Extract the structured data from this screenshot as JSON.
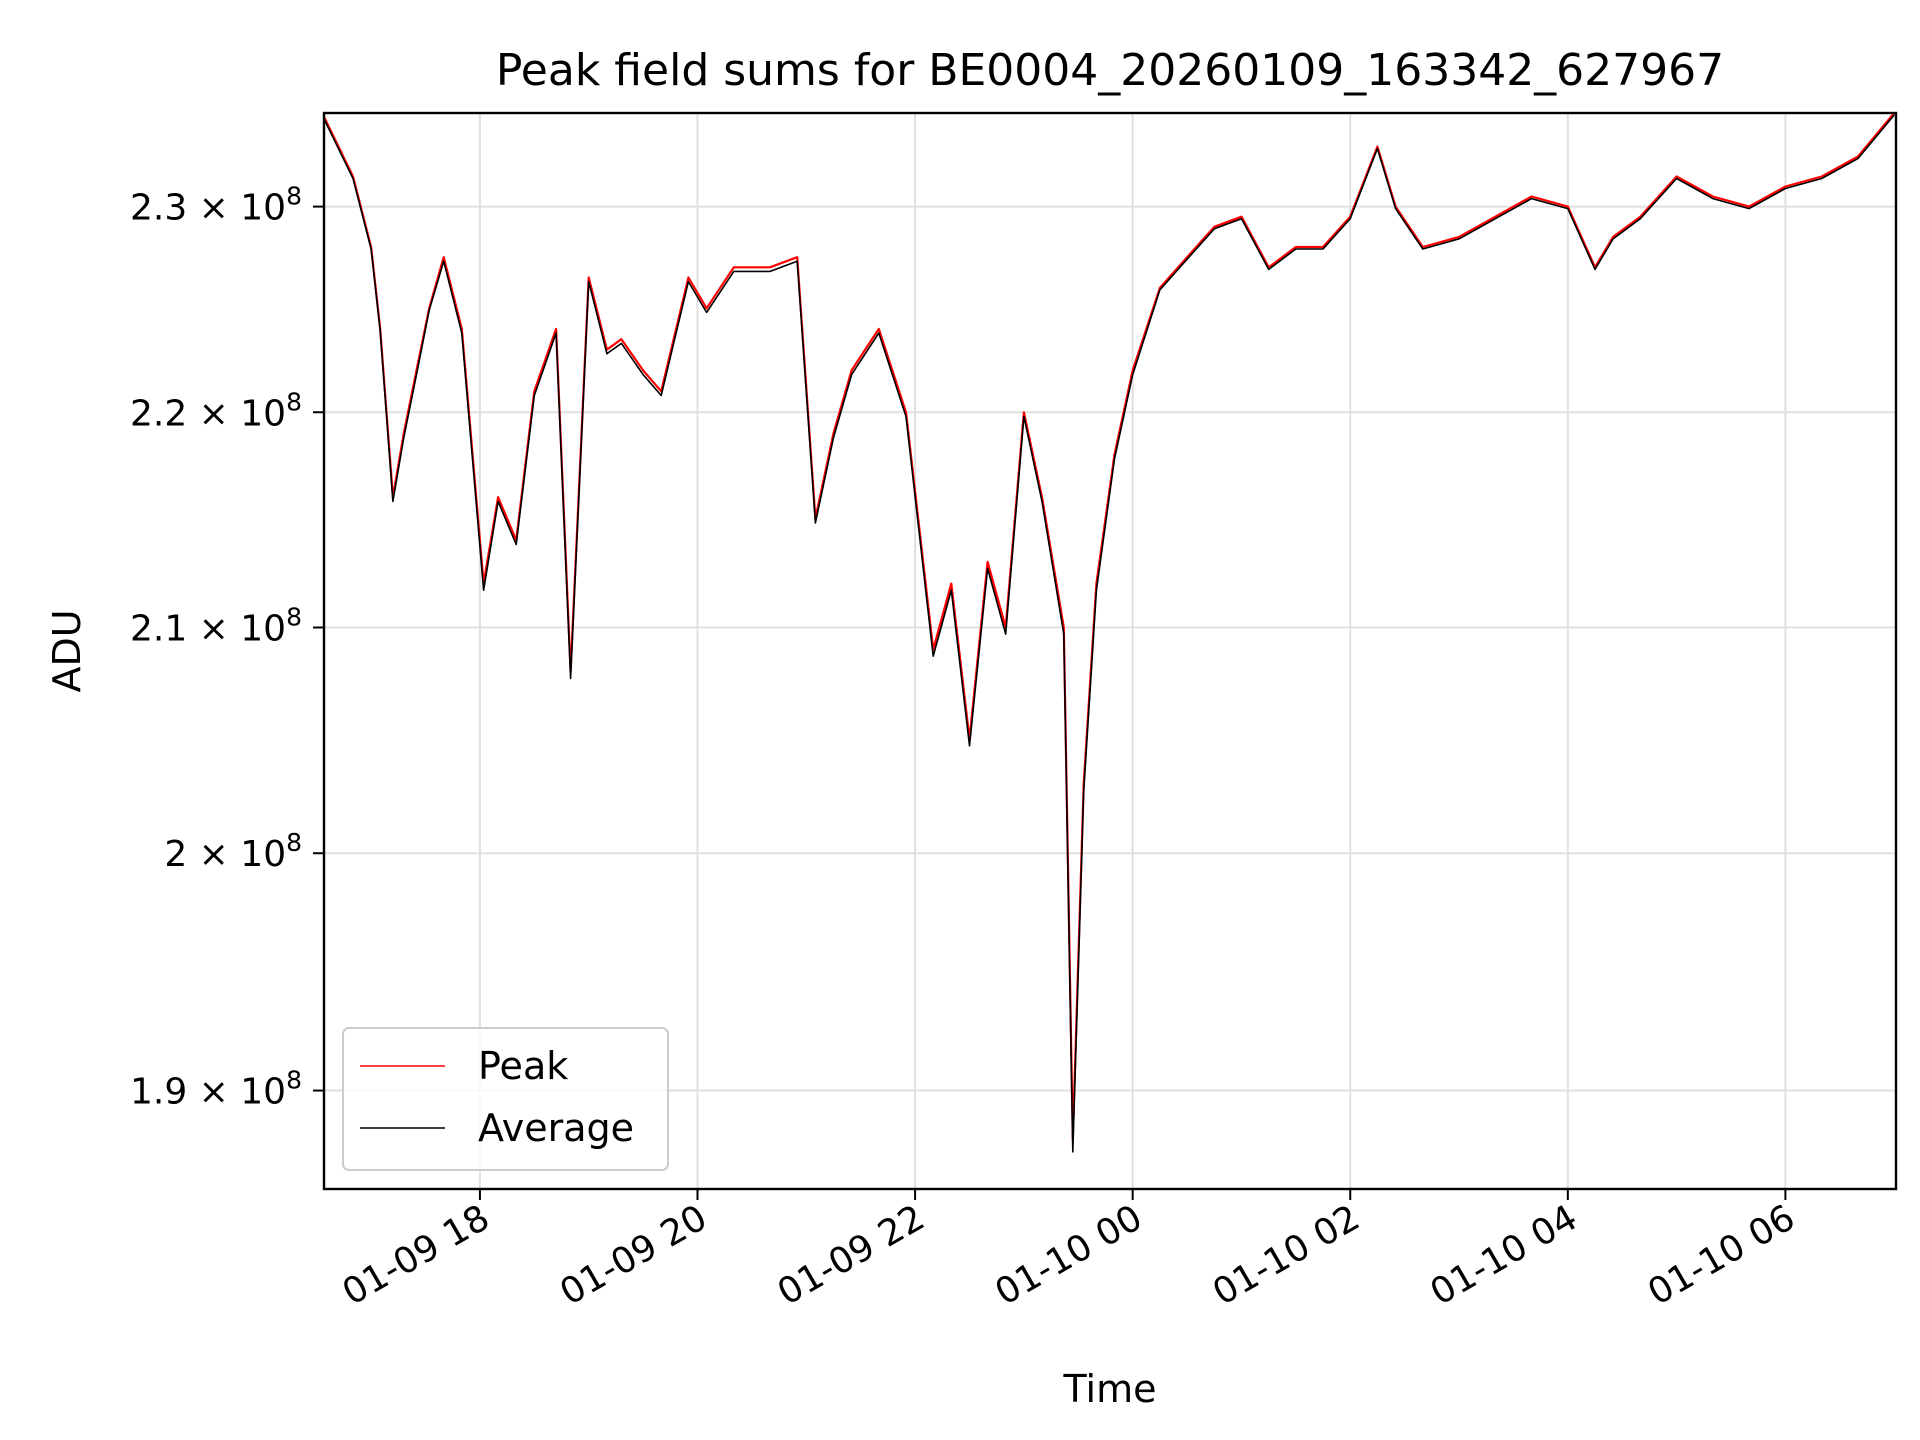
{
  "chart_data": {
    "type": "line",
    "title": "Peak field sums for BE0004_20260109_163342_627967",
    "xlabel": "Time",
    "ylabel": "ADU",
    "y_scale": "log",
    "xlim": [
      "2026-01-09 16:34",
      "2026-01-10 07:01"
    ],
    "ylim": [
      186000000,
      234700000
    ],
    "x_ticks": [
      "01-09 18",
      "01-09 20",
      "01-09 22",
      "01-10 00",
      "01-10 02",
      "01-10 04",
      "01-10 06"
    ],
    "x_tick_times": [
      "2026-01-09 18:00",
      "2026-01-09 20:00",
      "2026-01-09 22:00",
      "2026-01-10 00:00",
      "2026-01-10 02:00",
      "2026-01-10 04:00",
      "2026-01-10 06:00"
    ],
    "y_ticks": [
      {
        "value": 190000000,
        "mantissa": "1.9",
        "exponent": "8"
      },
      {
        "value": 200000000,
        "mantissa": "2",
        "exponent": "8"
      },
      {
        "value": 210000000,
        "mantissa": "2.1",
        "exponent": "8"
      },
      {
        "value": 220000000,
        "mantissa": "2.2",
        "exponent": "8"
      },
      {
        "value": 230000000,
        "mantissa": "2.3",
        "exponent": "8"
      }
    ],
    "tick_times_symbol": "×",
    "tick_base": "10",
    "grid": true,
    "legend_position": "lower-left",
    "series": [
      {
        "name": "Peak",
        "color": "#ff0000",
        "x": [
          "2026-01-09 16:34",
          "2026-01-09 16:50",
          "2026-01-09 17:00",
          "2026-01-09 17:05",
          "2026-01-09 17:12",
          "2026-01-09 17:18",
          "2026-01-09 17:25",
          "2026-01-09 17:32",
          "2026-01-09 17:40",
          "2026-01-09 17:50",
          "2026-01-09 18:02",
          "2026-01-09 18:10",
          "2026-01-09 18:20",
          "2026-01-09 18:30",
          "2026-01-09 18:42",
          "2026-01-09 18:50",
          "2026-01-09 19:00",
          "2026-01-09 19:10",
          "2026-01-09 19:18",
          "2026-01-09 19:30",
          "2026-01-09 19:40",
          "2026-01-09 19:55",
          "2026-01-09 20:05",
          "2026-01-09 20:20",
          "2026-01-09 20:40",
          "2026-01-09 20:55",
          "2026-01-09 21:05",
          "2026-01-09 21:15",
          "2026-01-09 21:25",
          "2026-01-09 21:40",
          "2026-01-09 21:55",
          "2026-01-09 22:10",
          "2026-01-09 22:20",
          "2026-01-09 22:30",
          "2026-01-09 22:40",
          "2026-01-09 22:50",
          "2026-01-09 23:00",
          "2026-01-09 23:10",
          "2026-01-09 23:22",
          "2026-01-09 23:27",
          "2026-01-09 23:33",
          "2026-01-09 23:40",
          "2026-01-09 23:50",
          "2026-01-10 00:00",
          "2026-01-10 00:15",
          "2026-01-10 00:30",
          "2026-01-10 00:45",
          "2026-01-10 01:00",
          "2026-01-10 01:15",
          "2026-01-10 01:30",
          "2026-01-10 01:45",
          "2026-01-10 02:00",
          "2026-01-10 02:15",
          "2026-01-10 02:25",
          "2026-01-10 02:40",
          "2026-01-10 03:00",
          "2026-01-10 03:20",
          "2026-01-10 03:40",
          "2026-01-10 04:00",
          "2026-01-10 04:15",
          "2026-01-10 04:25",
          "2026-01-10 04:40",
          "2026-01-10 05:00",
          "2026-01-10 05:20",
          "2026-01-10 05:40",
          "2026-01-10 06:00",
          "2026-01-10 06:20",
          "2026-01-10 06:40",
          "2026-01-10 07:00"
        ],
        "values": [
          234500000,
          231500000,
          228000000,
          224000000,
          216000000,
          219000000,
          222000000,
          225000000,
          227500000,
          224000000,
          212000000,
          216000000,
          214000000,
          221000000,
          224000000,
          208000000,
          226500000,
          223000000,
          223500000,
          222000000,
          221000000,
          226500000,
          225000000,
          227000000,
          227000000,
          227500000,
          215000000,
          219000000,
          222000000,
          224000000,
          220000000,
          209000000,
          212000000,
          205000000,
          213000000,
          210000000,
          220000000,
          216000000,
          210000000,
          188000000,
          203000000,
          212000000,
          218000000,
          222000000,
          226000000,
          227500000,
          229000000,
          229500000,
          227000000,
          228000000,
          228000000,
          229500000,
          233000000,
          230000000,
          228000000,
          228500000,
          229500000,
          230500000,
          230000000,
          227000000,
          228500000,
          229500000,
          231500000,
          230500000,
          230000000,
          231000000,
          231500000,
          232500000,
          234700000
        ]
      },
      {
        "name": "Average",
        "color": "#000000",
        "x": [
          "2026-01-09 16:34",
          "2026-01-09 16:50",
          "2026-01-09 17:00",
          "2026-01-09 17:05",
          "2026-01-09 17:12",
          "2026-01-09 17:18",
          "2026-01-09 17:25",
          "2026-01-09 17:32",
          "2026-01-09 17:40",
          "2026-01-09 17:50",
          "2026-01-09 18:02",
          "2026-01-09 18:10",
          "2026-01-09 18:20",
          "2026-01-09 18:30",
          "2026-01-09 18:42",
          "2026-01-09 18:50",
          "2026-01-09 19:00",
          "2026-01-09 19:10",
          "2026-01-09 19:18",
          "2026-01-09 19:30",
          "2026-01-09 19:40",
          "2026-01-09 19:55",
          "2026-01-09 20:05",
          "2026-01-09 20:20",
          "2026-01-09 20:40",
          "2026-01-09 20:55",
          "2026-01-09 21:05",
          "2026-01-09 21:15",
          "2026-01-09 21:25",
          "2026-01-09 21:40",
          "2026-01-09 21:55",
          "2026-01-09 22:10",
          "2026-01-09 22:20",
          "2026-01-09 22:30",
          "2026-01-09 22:40",
          "2026-01-09 22:50",
          "2026-01-09 23:00",
          "2026-01-09 23:10",
          "2026-01-09 23:22",
          "2026-01-09 23:27",
          "2026-01-09 23:33",
          "2026-01-09 23:40",
          "2026-01-09 23:50",
          "2026-01-10 00:00",
          "2026-01-10 00:15",
          "2026-01-10 00:30",
          "2026-01-10 00:45",
          "2026-01-10 01:00",
          "2026-01-10 01:15",
          "2026-01-10 01:30",
          "2026-01-10 01:45",
          "2026-01-10 02:00",
          "2026-01-10 02:15",
          "2026-01-10 02:25",
          "2026-01-10 02:40",
          "2026-01-10 03:00",
          "2026-01-10 03:20",
          "2026-01-10 03:40",
          "2026-01-10 04:00",
          "2026-01-10 04:15",
          "2026-01-10 04:25",
          "2026-01-10 04:40",
          "2026-01-10 05:00",
          "2026-01-10 05:20",
          "2026-01-10 05:40",
          "2026-01-10 06:00",
          "2026-01-10 06:20",
          "2026-01-10 06:40",
          "2026-01-10 07:00"
        ],
        "values": [
          234400000,
          231400000,
          227900000,
          223900000,
          215800000,
          218800000,
          221800000,
          224900000,
          227300000,
          223800000,
          211700000,
          215800000,
          213800000,
          220800000,
          223800000,
          207700000,
          226300000,
          222800000,
          223300000,
          221800000,
          220800000,
          226300000,
          224800000,
          226800000,
          226800000,
          227300000,
          214800000,
          218800000,
          221800000,
          223800000,
          219800000,
          208700000,
          211700000,
          204700000,
          212700000,
          209700000,
          219800000,
          215800000,
          209700000,
          187500000,
          202700000,
          211700000,
          217800000,
          221800000,
          225900000,
          227400000,
          228900000,
          229400000,
          226900000,
          227900000,
          227900000,
          229400000,
          232900000,
          229900000,
          227900000,
          228400000,
          229400000,
          230400000,
          229900000,
          226900000,
          228400000,
          229400000,
          231400000,
          230400000,
          229900000,
          230900000,
          231400000,
          232400000,
          234600000
        ]
      }
    ]
  }
}
